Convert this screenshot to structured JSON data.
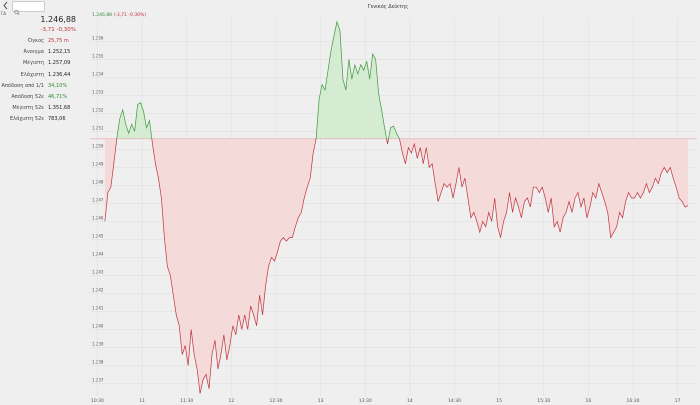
{
  "sidebar": {
    "symbol": "ΓΔ",
    "price": "1.246,88",
    "change": "-3,71 -0,30%",
    "rows": [
      [
        "Όγκος",
        "25,75 m"
      ],
      [
        "Άνοιγμα",
        "1.252,15"
      ],
      [
        "Μέγιστη",
        "1.257,09"
      ],
      [
        "Ελάχιστη",
        "1.236,44"
      ],
      [
        "Απόδοση από 1/1",
        "34,10%"
      ],
      [
        "Απόδοση 52ε",
        "46,71%"
      ],
      [
        "Μέγιστη 52ε",
        "1.351,68"
      ],
      [
        "Ελάχιστη 52ε",
        "783,06"
      ]
    ]
  },
  "chart_data": {
    "type": "line",
    "title": "Γενικός Δείκτης",
    "header_value": "1.246,88",
    "header_change": "(-3,71 -0,30%)",
    "baseline": 1250.59,
    "up_color": "#3a9a3a",
    "down_color": "#c0323a",
    "up_fill": "#d6ecd2",
    "down_fill": "#f5dada",
    "grid": true,
    "x": [
      635,
      637,
      639,
      641,
      643,
      645,
      647,
      649,
      651,
      653,
      655,
      657,
      659,
      661,
      663,
      665,
      667,
      669,
      671,
      673,
      675,
      677,
      679,
      681,
      683,
      685,
      687,
      689,
      691,
      693,
      695,
      697,
      699,
      701,
      703,
      705,
      707,
      709,
      711,
      713,
      715,
      717,
      719,
      721,
      723,
      725,
      727,
      729,
      731,
      733,
      735,
      737,
      739,
      741,
      743,
      745,
      747,
      749,
      751,
      753,
      755,
      757,
      759,
      761,
      763,
      765,
      767,
      769,
      771,
      773,
      775,
      777,
      779,
      781,
      783,
      785,
      787,
      789,
      791,
      793,
      795,
      797,
      799,
      801,
      803,
      805,
      807,
      809,
      811,
      813,
      815,
      817,
      819,
      821,
      823,
      825,
      827,
      829,
      831,
      833,
      835,
      837,
      839,
      841,
      843,
      845,
      847,
      849,
      851,
      853,
      855,
      857,
      859,
      861,
      863,
      865,
      867,
      869,
      871,
      873,
      875,
      877,
      879,
      881,
      883,
      885,
      887,
      889,
      891,
      893,
      895,
      897,
      899,
      901,
      903,
      905,
      907,
      909,
      911,
      913,
      915,
      917,
      919,
      921,
      923,
      925,
      927,
      929,
      931,
      933,
      935,
      937,
      939,
      941,
      943,
      945,
      947,
      949,
      951,
      953,
      955,
      957,
      959,
      961,
      963,
      965,
      967,
      969,
      971,
      973,
      975,
      977,
      979,
      981,
      983,
      985,
      987,
      989,
      991,
      993,
      995,
      997,
      999,
      1001,
      1003,
      1005,
      1007,
      1009,
      1011,
      1013,
      1015,
      1017,
      1019,
      1021,
      1023,
      1025,
      1027
    ],
    "values": [
      1246.0,
      1247.6,
      1247.9,
      1249.2,
      1250.6,
      1251.7,
      1252.2,
      1251.4,
      1250.9,
      1251.4,
      1251.0,
      1252.5,
      1252.6,
      1252.1,
      1251.2,
      1251.6,
      1250.3,
      1249.2,
      1248.4,
      1247.3,
      1245.1,
      1243.5,
      1243.0,
      1241.9,
      1240.8,
      1240.2,
      1238.6,
      1239.1,
      1238.0,
      1240.0,
      1238.6,
      1237.8,
      1236.44,
      1237.2,
      1237.5,
      1236.7,
      1238.6,
      1239.4,
      1237.8,
      1238.6,
      1239.7,
      1238.3,
      1239.1,
      1240.2,
      1239.7,
      1240.8,
      1240.0,
      1240.8,
      1240.0,
      1241.3,
      1240.8,
      1240.2,
      1241.9,
      1240.8,
      1242.4,
      1243.5,
      1244.0,
      1243.8,
      1244.3,
      1244.9,
      1245.1,
      1244.9,
      1245.1,
      1245.1,
      1245.7,
      1246.2,
      1246.5,
      1247.3,
      1247.9,
      1248.4,
      1249.8,
      1250.6,
      1252.8,
      1253.6,
      1253.3,
      1254.4,
      1255.5,
      1256.3,
      1257.09,
      1256.6,
      1253.9,
      1253.3,
      1255.0,
      1253.9,
      1254.7,
      1254.2,
      1254.7,
      1254.4,
      1254.9,
      1253.9,
      1255.3,
      1255.0,
      1253.1,
      1252.2,
      1251.2,
      1250.3,
      1251.2,
      1251.3,
      1250.9,
      1250.6,
      1249.8,
      1249.2,
      1250.1,
      1249.8,
      1250.3,
      1249.5,
      1250.1,
      1249.2,
      1250.1,
      1249.0,
      1249.2,
      1248.1,
      1247.1,
      1247.6,
      1248.1,
      1247.9,
      1248.1,
      1247.3,
      1248.1,
      1249.0,
      1247.9,
      1248.4,
      1247.3,
      1246.2,
      1246.5,
      1246.0,
      1245.4,
      1246.0,
      1245.7,
      1246.5,
      1246.0,
      1247.3,
      1245.7,
      1245.1,
      1246.0,
      1246.5,
      1247.6,
      1246.5,
      1247.3,
      1246.8,
      1246.2,
      1247.1,
      1247.3,
      1246.8,
      1247.9,
      1247.9,
      1247.6,
      1247.9,
      1247.3,
      1246.5,
      1247.3,
      1245.7,
      1246.0,
      1245.4,
      1246.2,
      1246.5,
      1247.1,
      1246.5,
      1247.3,
      1247.6,
      1246.8,
      1247.3,
      1246.2,
      1246.8,
      1247.6,
      1247.3,
      1248.1,
      1247.6,
      1247.1,
      1246.5,
      1245.1,
      1245.4,
      1245.7,
      1246.5,
      1246.2,
      1247.1,
      1247.6,
      1247.3,
      1247.3,
      1247.6,
      1247.3,
      1247.6,
      1248.1,
      1247.6,
      1247.9,
      1248.4,
      1248.1,
      1248.7,
      1249.0,
      1248.7,
      1249.0,
      1248.4,
      1247.9,
      1247.3,
      1247.1,
      1246.8,
      1246.88
    ],
    "xlim": [
      625,
      1033
    ],
    "xticks": [
      {
        "value": 630,
        "label": "10:30"
      },
      {
        "value": 660,
        "label": "11"
      },
      {
        "value": 690,
        "label": "11:30"
      },
      {
        "value": 720,
        "label": "12"
      },
      {
        "value": 750,
        "label": "12:30"
      },
      {
        "value": 780,
        "label": "13"
      },
      {
        "value": 810,
        "label": "13:30"
      },
      {
        "value": 840,
        "label": "14"
      },
      {
        "value": 870,
        "label": "14:30"
      },
      {
        "value": 900,
        "label": "15"
      },
      {
        "value": 930,
        "label": "15:30"
      },
      {
        "value": 960,
        "label": "16"
      },
      {
        "value": 990,
        "label": "16:30"
      },
      {
        "value": 1020,
        "label": "17"
      }
    ],
    "ylim": [
      1236.3,
      1257.3
    ],
    "yticks": [
      {
        "value": 1237,
        "label": "1.237"
      },
      {
        "value": 1238,
        "label": "1.238"
      },
      {
        "value": 1239,
        "label": "1.239"
      },
      {
        "value": 1240,
        "label": "1.240"
      },
      {
        "value": 1241,
        "label": "1.241"
      },
      {
        "value": 1242,
        "label": "1.242"
      },
      {
        "value": 1243,
        "label": "1.243"
      },
      {
        "value": 1244,
        "label": "1.244"
      },
      {
        "value": 1245,
        "label": "1.245"
      },
      {
        "value": 1246,
        "label": "1.246"
      },
      {
        "value": 1247,
        "label": "1.247"
      },
      {
        "value": 1248,
        "label": "1.248"
      },
      {
        "value": 1249,
        "label": "1.249"
      },
      {
        "value": 1250,
        "label": "1.250"
      },
      {
        "value": 1251,
        "label": "1.251"
      },
      {
        "value": 1252,
        "label": "1.252"
      },
      {
        "value": 1253,
        "label": "1.253"
      },
      {
        "value": 1254,
        "label": "1.254"
      },
      {
        "value": 1255,
        "label": "1.255"
      },
      {
        "value": 1256,
        "label": "1.256"
      }
    ]
  }
}
